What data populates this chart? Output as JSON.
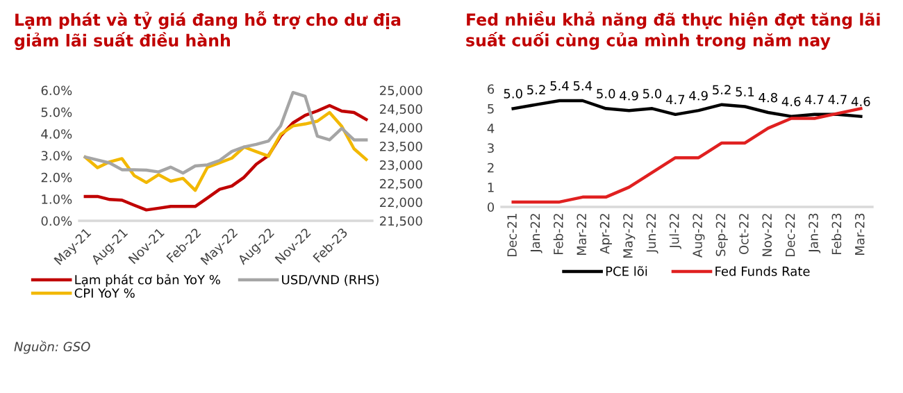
{
  "chart_data": [
    {
      "type": "line",
      "title": "Lạm phát và tỷ giá đang hỗ trợ cho dư địa giảm lãi suất điều hành",
      "categories": [
        "May-21",
        null,
        null,
        "Aug-21",
        null,
        null,
        "Nov-21",
        null,
        null,
        "Feb-22",
        null,
        null,
        "May-22",
        null,
        null,
        "Aug-22",
        null,
        null,
        "Nov-22",
        null,
        null,
        "Feb-23",
        null,
        null
      ],
      "series": [
        {
          "name": "Lạm phát cơ bản YoY %",
          "color": "#c00000",
          "values": [
            1.12,
            1.12,
            0.98,
            0.95,
            0.72,
            0.5,
            0.58,
            0.66,
            0.66,
            0.66,
            1.05,
            1.45,
            1.6,
            2.0,
            2.6,
            3.0,
            3.9,
            4.5,
            4.85,
            5.05,
            5.3,
            5.04,
            4.98,
            4.66
          ]
        },
        {
          "name": "CPI YoY %",
          "color": "#f2b800",
          "values": [
            2.92,
            2.44,
            2.71,
            2.86,
            2.08,
            1.76,
            2.12,
            1.82,
            1.95,
            1.4,
            2.46,
            2.67,
            2.88,
            3.39,
            3.18,
            2.97,
            3.98,
            4.36,
            4.45,
            4.58,
            4.98,
            4.34,
            3.31,
            2.82
          ]
        },
        {
          "name": "USD/VND (RHS)",
          "color": "#a5a5a5",
          "axis": "y2",
          "values": [
            23210,
            23130,
            23050,
            22870,
            22870,
            22860,
            22810,
            22940,
            22780,
            22970,
            23000,
            23120,
            23360,
            23480,
            23550,
            23640,
            24050,
            24940,
            24840,
            23770,
            23670,
            23980,
            23670,
            23670
          ]
        }
      ],
      "ylim": [
        0,
        6
      ],
      "yticks": [
        {
          "value": 0,
          "label": "0.0%"
        },
        {
          "value": 1,
          "label": "1.0%"
        },
        {
          "value": 2,
          "label": "2.0%"
        },
        {
          "value": 3,
          "label": "3.0%"
        },
        {
          "value": 4,
          "label": "4.0%"
        },
        {
          "value": 5,
          "label": "5.0%"
        },
        {
          "value": 6,
          "label": "6.0%"
        }
      ],
      "y2lim": [
        21500,
        25000
      ],
      "y2ticks": [
        {
          "value": 21500,
          "label": "21,500"
        },
        {
          "value": 22000,
          "label": "22,000"
        },
        {
          "value": 22500,
          "label": "22,500"
        },
        {
          "value": 23000,
          "label": "23,000"
        },
        {
          "value": 23500,
          "label": "23,500"
        },
        {
          "value": 24000,
          "label": "24,000"
        },
        {
          "value": 24500,
          "label": "24,500"
        },
        {
          "value": 25000,
          "label": "25,000"
        }
      ],
      "grid": false,
      "legend": "bottom",
      "annotations": [
        "Nguồn: GSO"
      ]
    },
    {
      "type": "line",
      "title": "Fed nhiều khả năng đã thực hiện đợt tăng lãi suất cuối cùng của mình trong năm nay",
      "categories": [
        "Dec-21",
        "Jan-22",
        "Feb-22",
        "Mar-22",
        "Apr-22",
        "May-22",
        "Jun-22",
        "Jul-22",
        "Aug-22",
        "Sep-22",
        "Oct-22",
        "Nov-22",
        "Dec-22",
        "Jan-23",
        "Feb-23",
        "Mar-23"
      ],
      "series": [
        {
          "name": "PCE lõi",
          "color": "#000000",
          "values": [
            5.0,
            5.2,
            5.4,
            5.4,
            5.0,
            4.9,
            5.0,
            4.7,
            4.9,
            5.2,
            5.1,
            4.8,
            4.6,
            4.7,
            4.7,
            4.6
          ],
          "value_labels": [
            "5.0",
            "5.2",
            "5.4",
            "5.4",
            "5.0",
            "4.9",
            "5.0",
            "4.7",
            "4.9",
            "5.2",
            "5.1",
            "4.8",
            "4.6",
            "4.7",
            "4.7",
            "4.6"
          ]
        },
        {
          "name": "Fed Funds Rate",
          "color": "#e02020",
          "values": [
            0.25,
            0.25,
            0.25,
            0.5,
            0.5,
            1.0,
            1.75,
            2.5,
            2.5,
            3.25,
            3.25,
            4.0,
            4.5,
            4.5,
            4.75,
            5.0
          ]
        }
      ],
      "ylim": [
        0,
        6
      ],
      "yticks": [
        0,
        1,
        2,
        3,
        4,
        5,
        6
      ],
      "grid": false,
      "legend": "bottom"
    }
  ]
}
